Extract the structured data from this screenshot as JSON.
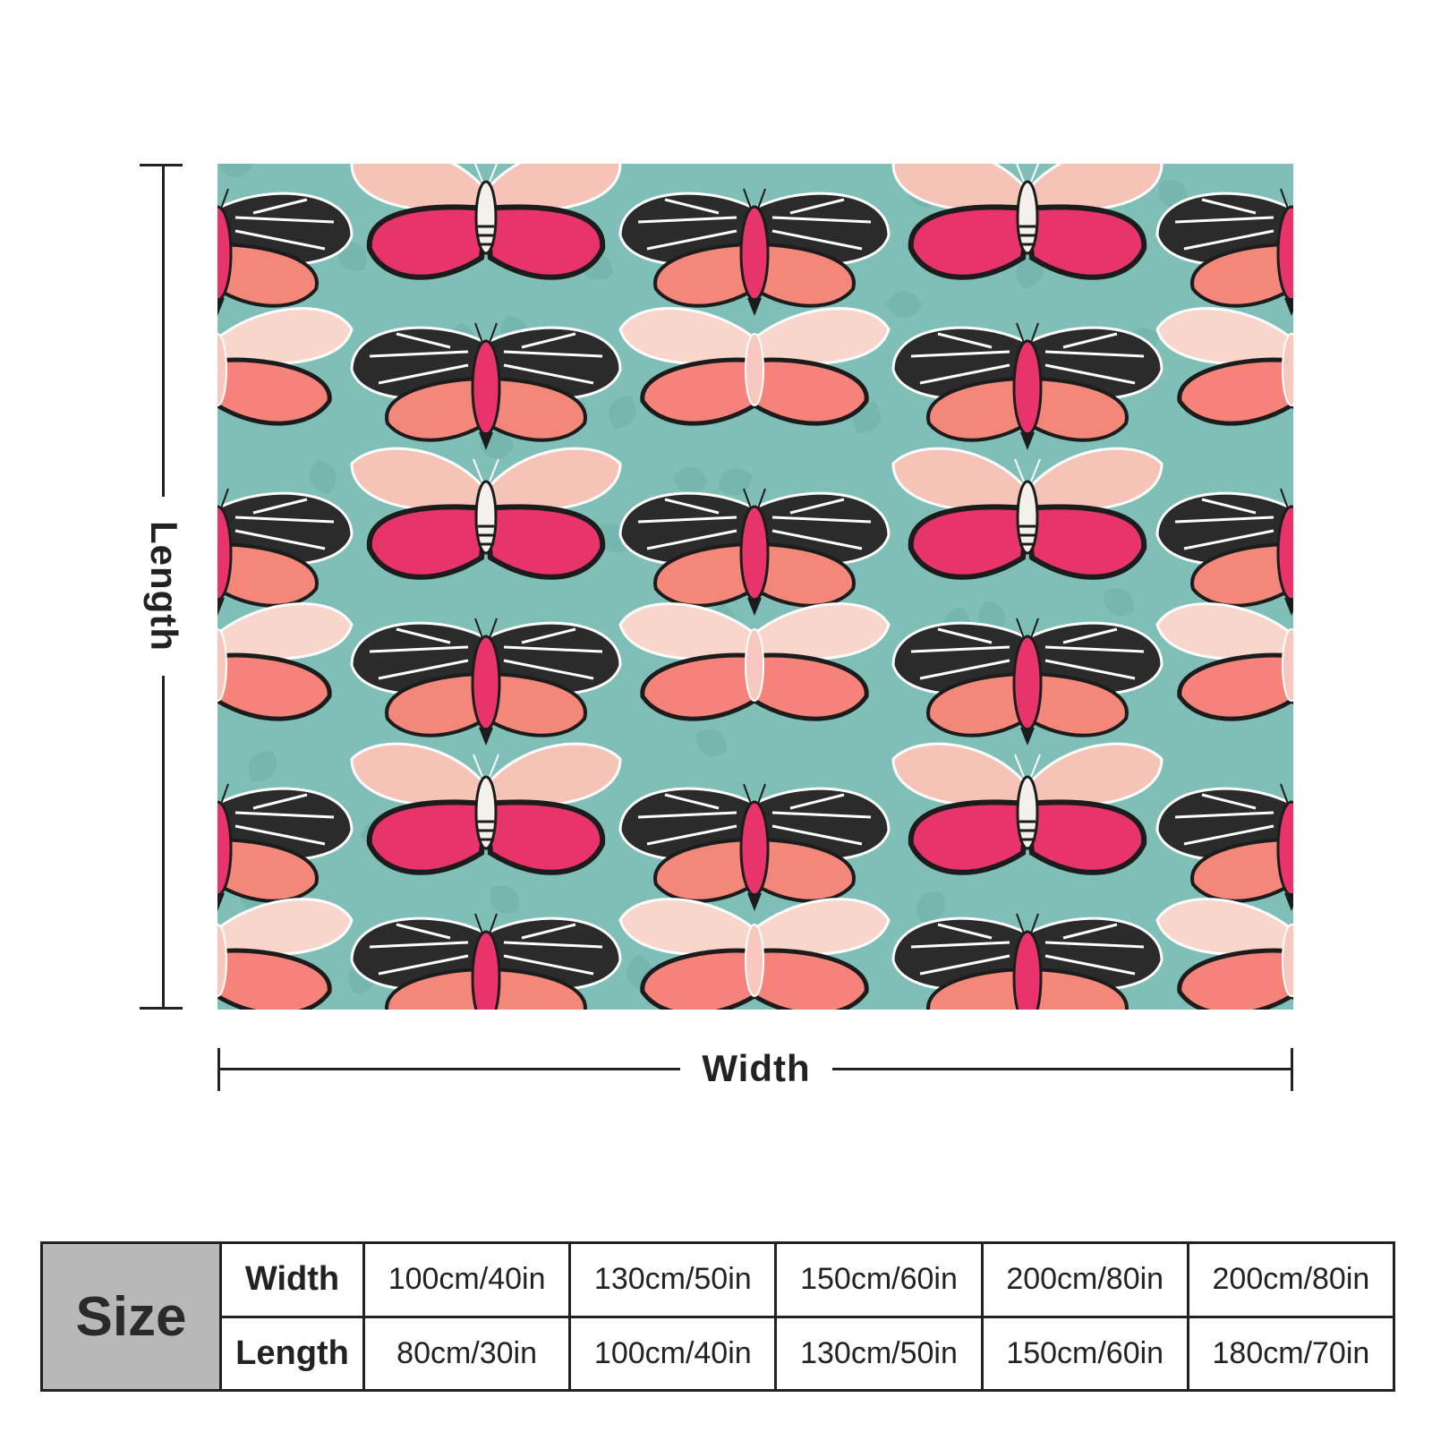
{
  "diagram": {
    "length_label": "Length",
    "width_label": "Width"
  },
  "pattern": {
    "background_color": "#7fbfb7",
    "motif": "moth pattern"
  },
  "size_table": {
    "header": "Size",
    "rows": [
      {
        "label": "Width",
        "values": [
          "100cm/40in",
          "130cm/50in",
          "150cm/60in",
          "200cm/80in",
          "200cm/80in"
        ]
      },
      {
        "label": "Length",
        "values": [
          "80cm/30in",
          "100cm/40in",
          "130cm/50in",
          "150cm/60in",
          "180cm/70in"
        ]
      }
    ]
  }
}
